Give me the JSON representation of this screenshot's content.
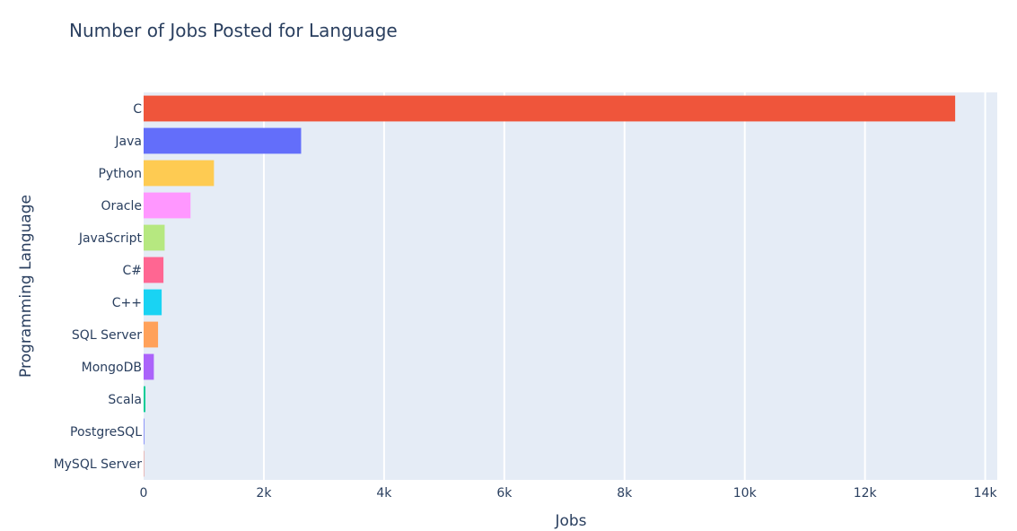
{
  "chart_data": {
    "type": "bar",
    "orientation": "horizontal",
    "title": "Number of Jobs Posted for Language",
    "xlabel": "Jobs",
    "ylabel": "Programming Language",
    "xlim": [
      0,
      14200
    ],
    "x_ticks": [
      0,
      2000,
      4000,
      6000,
      8000,
      10000,
      12000,
      14000
    ],
    "x_tick_labels": [
      "0",
      "2k",
      "4k",
      "6k",
      "8k",
      "10k",
      "12k",
      "14k"
    ],
    "grid": true,
    "categories": [
      "C",
      "Java",
      "Python",
      "Oracle",
      "JavaScript",
      "C#",
      "C++",
      "SQL Server",
      "MongoDB",
      "Scala",
      "PostgreSQL",
      "MySQL Server"
    ],
    "values": [
      13500,
      2620,
      1170,
      780,
      350,
      330,
      300,
      240,
      170,
      30,
      10,
      5
    ],
    "colors": [
      "#EF553B",
      "#636EFA",
      "#FECB52",
      "#FF97FF",
      "#B6E880",
      "#FF6692",
      "#19D3F3",
      "#FFA15A",
      "#AB63FA",
      "#00CC96",
      "#636EFA",
      "#EF553B"
    ]
  }
}
